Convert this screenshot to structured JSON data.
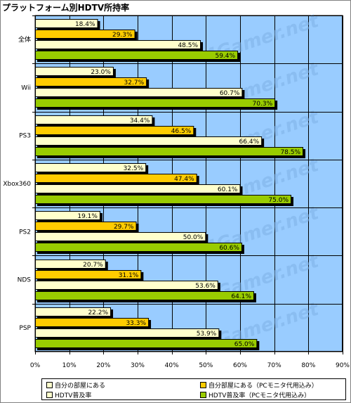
{
  "title": "プラットフォーム別HDTV所持率",
  "colors": {
    "plot_bg": "#99ccff",
    "gridline": "#000000",
    "watermark": "#7fb2e6"
  },
  "watermark_text": "4Gamer.net",
  "chart_data": {
    "type": "bar",
    "orientation": "horizontal",
    "categories": [
      "全体",
      "Wii",
      "PS3",
      "Xbox360",
      "PS2",
      "NDS",
      "PSP"
    ],
    "series": [
      {
        "name": "自分の部屋にある",
        "color": "#ffffcc",
        "values": [
          18.4,
          23.0,
          34.4,
          32.5,
          19.1,
          20.7,
          22.2
        ]
      },
      {
        "name": "自分部屋にある（PCモニタ代用込み）",
        "color": "#ffcc00",
        "values": [
          29.3,
          32.7,
          46.5,
          47.4,
          29.7,
          31.1,
          33.3
        ]
      },
      {
        "name": "HDTV普及率",
        "color": "#ffffcc",
        "values": [
          48.5,
          60.7,
          66.4,
          60.1,
          50.0,
          53.6,
          53.9
        ]
      },
      {
        "name": "HDTV普及率（PCモニタ代用込み）",
        "color": "#99cc00",
        "values": [
          59.4,
          70.3,
          78.5,
          75.0,
          60.6,
          64.1,
          65.0
        ]
      }
    ],
    "value_labels": [
      [
        "18.4%",
        "29.3%",
        "48.5%",
        "59.4%"
      ],
      [
        "23.0%",
        "32.7%",
        "60.7%",
        "70.3%"
      ],
      [
        "34.4%",
        "46.5%",
        "66.4%",
        "78.5%"
      ],
      [
        "32.5%",
        "47.4%",
        "60.1%",
        "75.0%"
      ],
      [
        "19.1%",
        "29.7%",
        "50.0%",
        "60.6%"
      ],
      [
        "20.7%",
        "31.1%",
        "53.6%",
        "64.1%"
      ],
      [
        "22.2%",
        "33.3%",
        "53.9%",
        "65.0%"
      ]
    ],
    "xlim": [
      0,
      90
    ],
    "xticks": [
      0,
      10,
      20,
      30,
      40,
      50,
      60,
      70,
      80,
      90
    ],
    "xtick_labels": [
      "0%",
      "10%",
      "20%",
      "30%",
      "40%",
      "50%",
      "60%",
      "70%",
      "80%",
      "90%"
    ],
    "grid": true,
    "legend_position": "bottom"
  }
}
